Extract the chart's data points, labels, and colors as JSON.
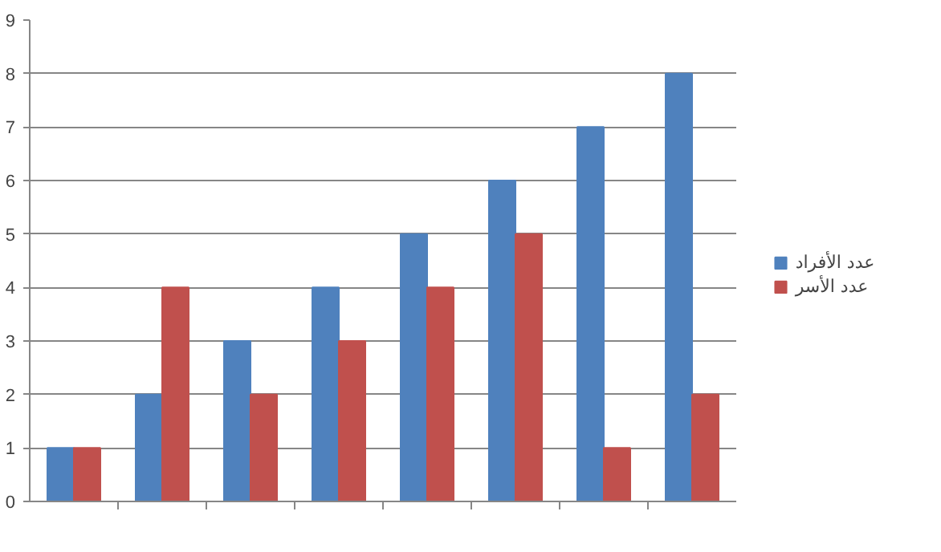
{
  "chart_data": {
    "type": "bar",
    "categories": [
      null,
      null,
      null,
      null,
      null,
      null,
      null,
      null
    ],
    "series": [
      {
        "name": "عدد الأفراد",
        "color": "#4f81bd",
        "values": [
          1,
          2,
          3,
          4,
          5,
          6,
          7,
          8
        ]
      },
      {
        "name": "عدد الأسر",
        "color": "#c0504d",
        "values": [
          1,
          4,
          2,
          3,
          4,
          5,
          1,
          2
        ]
      }
    ],
    "ylim": [
      0,
      9
    ],
    "yticks": [
      0,
      1,
      2,
      3,
      4,
      5,
      6,
      7,
      8,
      9
    ],
    "grid": "y",
    "legend": "right"
  }
}
